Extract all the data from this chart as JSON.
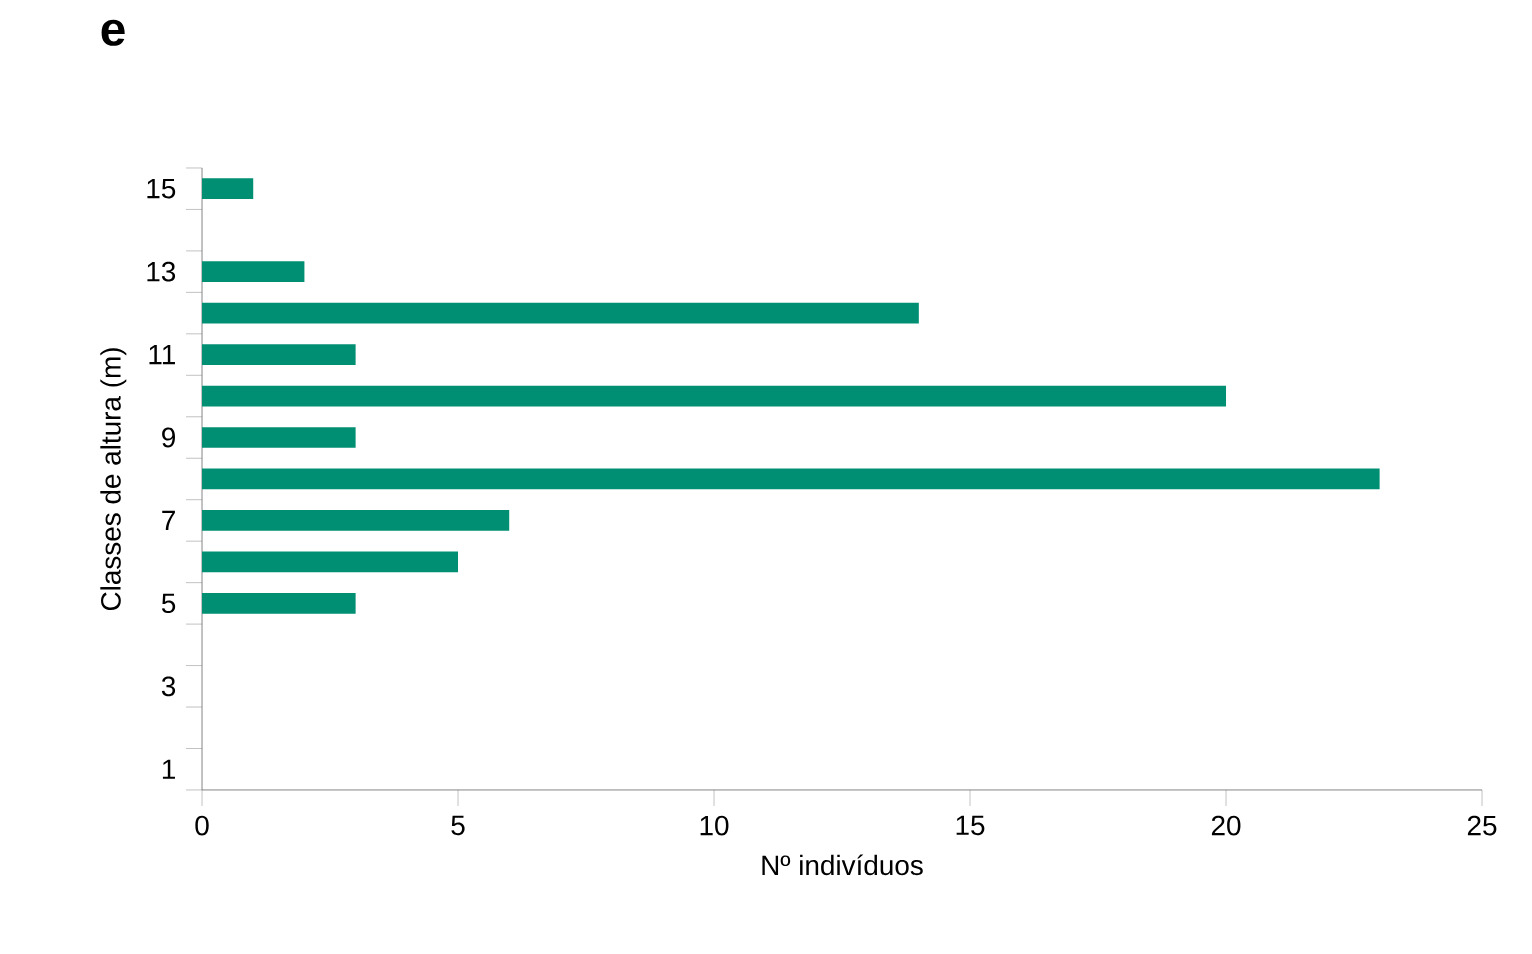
{
  "chart_data": {
    "type": "bar",
    "orientation": "horizontal",
    "title": "e",
    "ylabel": "Classes de altura (m)",
    "xlabel": "Nº indivíduos",
    "categories": [
      "15",
      null,
      "13",
      null,
      "11",
      null,
      "9",
      null,
      "7",
      null,
      "5",
      null,
      "3",
      null,
      "1"
    ],
    "values": [
      1,
      0,
      2,
      14,
      3,
      20,
      3,
      23,
      6,
      5,
      3,
      0,
      0,
      0,
      0
    ],
    "color": "#008f72",
    "xlim": [
      0,
      25
    ],
    "xticks": [
      0,
      5,
      10,
      15,
      20,
      25
    ],
    "grid": false
  }
}
